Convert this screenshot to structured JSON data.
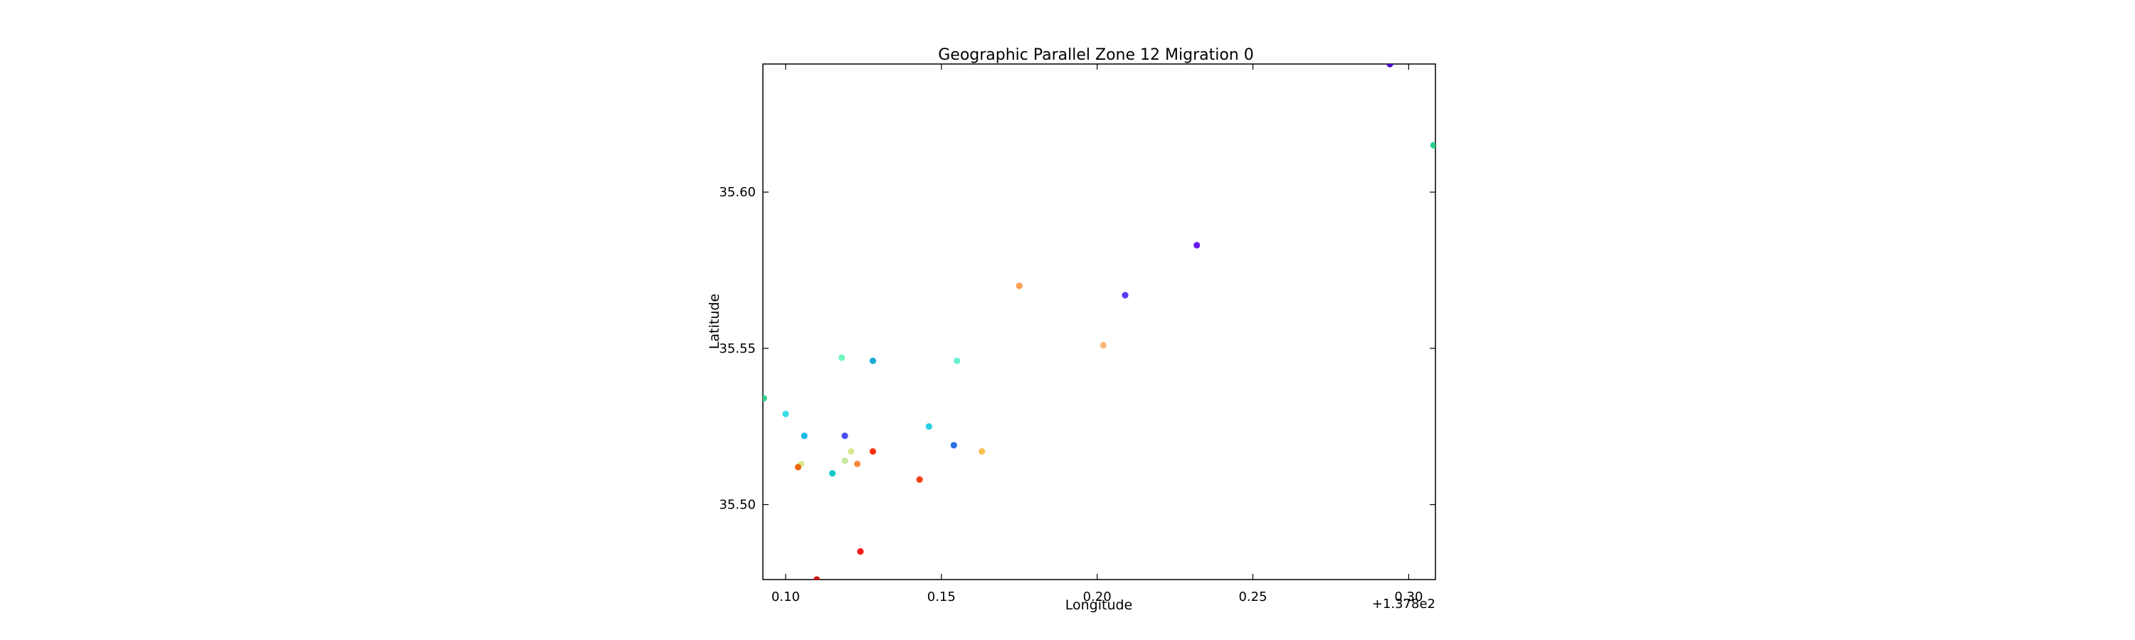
{
  "chart_data": {
    "type": "scatter",
    "title": "Geographic Parallel Zone 12 Migration 0",
    "xlabel": "Longitude",
    "ylabel": "Latitude",
    "x_offset_label": "+1.378e2",
    "xlim": [
      137.8927,
      138.1086
    ],
    "ylim": [
      35.476,
      35.641
    ],
    "x_ticks": [
      {
        "value": 137.9,
        "label": "0.10"
      },
      {
        "value": 137.95,
        "label": "0.15"
      },
      {
        "value": 138.0,
        "label": "0.20"
      },
      {
        "value": 138.05,
        "label": "0.25"
      },
      {
        "value": 138.1,
        "label": "0.30"
      }
    ],
    "y_ticks": [
      {
        "value": 35.5,
        "label": "35.50"
      },
      {
        "value": 35.55,
        "label": "35.55"
      },
      {
        "value": 35.6,
        "label": "35.60"
      }
    ],
    "grid": false,
    "legend": "none",
    "points": [
      {
        "x": 138.094,
        "y": 35.641,
        "color": "#5000d0"
      },
      {
        "x": 138.108,
        "y": 35.615,
        "color": "#2ad08a"
      },
      {
        "x": 138.032,
        "y": 35.583,
        "color": "#6a1bf0"
      },
      {
        "x": 138.009,
        "y": 35.567,
        "color": "#5a3cf8"
      },
      {
        "x": 137.975,
        "y": 35.57,
        "color": "#ffa050"
      },
      {
        "x": 138.002,
        "y": 35.551,
        "color": "#f8b878"
      },
      {
        "x": 137.918,
        "y": 35.547,
        "color": "#70f8c0"
      },
      {
        "x": 137.928,
        "y": 35.546,
        "color": "#1aa8d8"
      },
      {
        "x": 137.955,
        "y": 35.546,
        "color": "#6af0d0"
      },
      {
        "x": 137.893,
        "y": 35.534,
        "color": "#3ad090"
      },
      {
        "x": 137.9,
        "y": 35.529,
        "color": "#3adce8"
      },
      {
        "x": 137.946,
        "y": 35.525,
        "color": "#28d0e0"
      },
      {
        "x": 137.906,
        "y": 35.522,
        "color": "#12b8e8"
      },
      {
        "x": 137.919,
        "y": 35.522,
        "color": "#4a50f0"
      },
      {
        "x": 137.954,
        "y": 35.519,
        "color": "#2a70e8"
      },
      {
        "x": 137.963,
        "y": 35.517,
        "color": "#f8c050"
      },
      {
        "x": 137.921,
        "y": 35.517,
        "color": "#d8e890"
      },
      {
        "x": 137.928,
        "y": 35.517,
        "color": "#ff3010"
      },
      {
        "x": 137.919,
        "y": 35.514,
        "color": "#c8e8a0"
      },
      {
        "x": 137.923,
        "y": 35.513,
        "color": "#ff8840"
      },
      {
        "x": 137.905,
        "y": 35.513,
        "color": "#e0e898"
      },
      {
        "x": 137.904,
        "y": 35.512,
        "color": "#f06810"
      },
      {
        "x": 137.915,
        "y": 35.51,
        "color": "#18c8c8"
      },
      {
        "x": 137.943,
        "y": 35.508,
        "color": "#f84010"
      },
      {
        "x": 137.924,
        "y": 35.485,
        "color": "#f81818"
      },
      {
        "x": 137.91,
        "y": 35.476,
        "color": "#d81010"
      }
    ]
  }
}
